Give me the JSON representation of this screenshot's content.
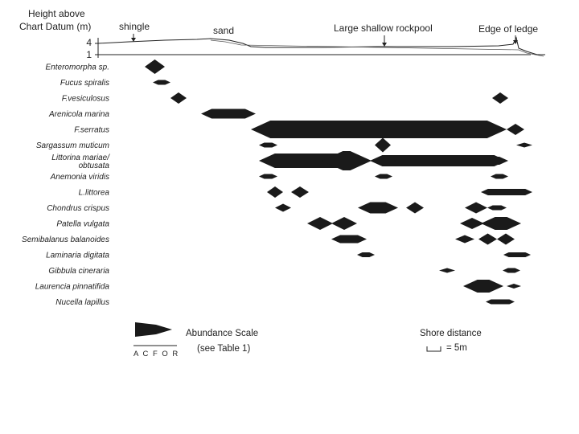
{
  "header": {
    "y_title_line1": "Height above",
    "y_title_line2": "Chart Datum (m)",
    "y_ticks": [
      "4",
      "1"
    ]
  },
  "profile_labels": {
    "shingle": "shingle",
    "sand": "sand",
    "rockpool": "Large shallow rockpool",
    "ledge": "Edge of ledge"
  },
  "species": [
    {
      "label": "Enteromorpha sp.",
      "zones": [
        [
          180,
          205,
          9
        ]
      ]
    },
    {
      "label": "Fucus spiralis",
      "zones": [
        [
          190,
          212,
          3
        ]
      ]
    },
    {
      "label": "F.vesiculosus",
      "zones": [
        [
          212,
          232,
          7
        ],
        [
          612,
          632,
          7
        ]
      ]
    },
    {
      "label": "Arenicola marina",
      "zones": [
        [
          250,
          318,
          6
        ]
      ]
    },
    {
      "label": "F.serratus",
      "zones": [
        [
          312,
          630,
          11
        ],
        [
          630,
          652,
          7
        ]
      ]
    },
    {
      "label": "Sargassum muticum",
      "zones": [
        [
          322,
          345,
          3
        ],
        [
          466,
          486,
          9
        ],
        [
          642,
          662,
          3
        ]
      ]
    },
    {
      "label": "Littorina mariae/ obtusata",
      "zones": [
        [
          322,
          460,
          9
        ],
        [
          400,
          462,
          12
        ],
        [
          460,
          630,
          7
        ],
        [
          460,
          492,
          6
        ],
        [
          490,
          632,
          5
        ]
      ]
    },
    {
      "label": "Anemonia viridis",
      "zones": [
        [
          322,
          345,
          3
        ],
        [
          466,
          488,
          3
        ],
        [
          610,
          632,
          3
        ]
      ]
    },
    {
      "label": "L.littorea",
      "zones": [
        [
          332,
          352,
          7
        ],
        [
          362,
          384,
          7
        ],
        [
          598,
          662,
          4
        ]
      ]
    },
    {
      "label": "Chondrus crispus",
      "zones": [
        [
          342,
          362,
          5
        ],
        [
          445,
          495,
          7
        ],
        [
          505,
          527,
          7
        ],
        [
          578,
          606,
          7
        ],
        [
          606,
          630,
          3
        ]
      ]
    },
    {
      "label": "Patella vulgata",
      "zones": [
        [
          382,
          414,
          8
        ],
        [
          412,
          444,
          8
        ],
        [
          572,
          602,
          7
        ],
        [
          598,
          648,
          8
        ]
      ]
    },
    {
      "label": "Semibalanus balanoides",
      "zones": [
        [
          412,
          456,
          5
        ],
        [
          566,
          590,
          5
        ],
        [
          595,
          618,
          7
        ],
        [
          618,
          640,
          7
        ]
      ]
    },
    {
      "label": "Laminaria digitata",
      "zones": [
        [
          444,
          466,
          3
        ],
        [
          626,
          660,
          3
        ]
      ]
    },
    {
      "label": "Gibbula cineraria",
      "zones": [
        [
          546,
          566,
          3
        ],
        [
          625,
          647,
          3
        ]
      ]
    },
    {
      "label": "Laurencia pinnatifida",
      "zones": [
        [
          576,
          626,
          8
        ],
        [
          630,
          648,
          3
        ]
      ]
    },
    {
      "label": "Nucella lapillus",
      "zones": [
        [
          604,
          640,
          3
        ]
      ]
    }
  ],
  "legend": {
    "abundance_title": "Abundance Scale",
    "abundance_ref": "(see Table 1)",
    "acfor": "A C F O R",
    "shore_title": "Shore distance",
    "shore_unit": "= 5m"
  }
}
